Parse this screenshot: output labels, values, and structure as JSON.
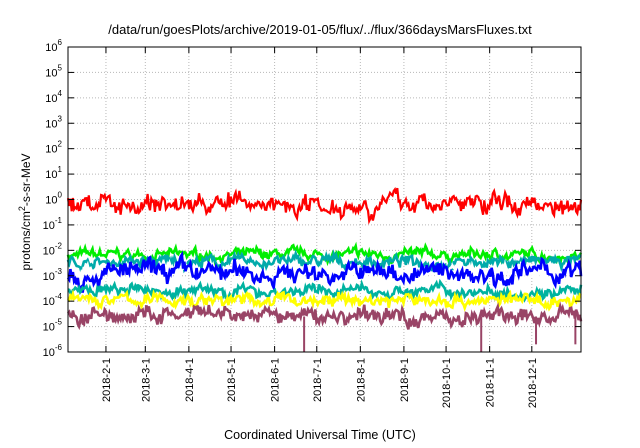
{
  "chart_data": {
    "type": "line",
    "title": "/data/run/goesPlots/archive/2019-01-05/flux/../flux/366daysMarsFluxes.txt",
    "xlabel": "Coordinated Universal Time (UTC)",
    "ylabel": "protons/cm²-s-sr-MeV",
    "ylabel_parts": {
      "pre": "protons/cm",
      "sup": "2",
      "post": "-s-sr-MeV"
    },
    "y_scale": "log",
    "ylim": [
      1e-06,
      1000000.0
    ],
    "y_ticks": [
      {
        "base": "10",
        "exp": "-6",
        "value": 1e-06
      },
      {
        "base": "10",
        "exp": "-5",
        "value": 1e-05
      },
      {
        "base": "10",
        "exp": "-4",
        "value": 0.0001
      },
      {
        "base": "10",
        "exp": "-3",
        "value": 0.001
      },
      {
        "base": "10",
        "exp": "-2",
        "value": 0.01
      },
      {
        "base": "10",
        "exp": "-1",
        "value": 0.1
      },
      {
        "base": "10",
        "exp": "0",
        "value": 1
      },
      {
        "base": "10",
        "exp": "1",
        "value": 10
      },
      {
        "base": "10",
        "exp": "2",
        "value": 100
      },
      {
        "base": "10",
        "exp": "3",
        "value": 1000
      },
      {
        "base": "10",
        "exp": "4",
        "value": 10000
      },
      {
        "base": "10",
        "exp": "5",
        "value": 100000
      },
      {
        "base": "10",
        "exp": "6",
        "value": 1000000
      }
    ],
    "xlim": [
      "2018-01-05",
      "2019-01-05"
    ],
    "x_ticks": [
      "2018-2-1",
      "2018-3-1",
      "2018-4-1",
      "2018-5-1",
      "2018-6-1",
      "2018-7-1",
      "2018-8-1",
      "2018-9-1",
      "2018-10-1",
      "2018-11-1",
      "2018-12-1"
    ],
    "x_tick_dates": [
      "2018-02-01",
      "2018-03-01",
      "2018-04-01",
      "2018-05-01",
      "2018-06-01",
      "2018-07-01",
      "2018-08-01",
      "2018-09-01",
      "2018-10-01",
      "2018-11-01",
      "2018-12-01"
    ],
    "grid": true,
    "series": [
      {
        "color": "#00ee00",
        "baseline": 0.0065,
        "amplitude": 0.18
      },
      {
        "color": "#00aaaa",
        "baseline": 0.0035,
        "amplitude": 0.2
      },
      {
        "color": "#ffffff",
        "baseline": 0.0012,
        "amplitude": 0.22
      },
      {
        "color": "#0000ff",
        "baseline": 0.0013,
        "amplitude": 0.35
      },
      {
        "color": "#00b3a0",
        "baseline": 0.00025,
        "amplitude": 0.2
      },
      {
        "color": "#ffff00",
        "baseline": 0.00011,
        "amplitude": 0.22
      },
      {
        "color": "#994466",
        "baseline": 2.5e-05,
        "amplitude": 0.3
      },
      {
        "color": "#ff0000",
        "baseline": 0.7,
        "amplitude": 0.35
      }
    ],
    "spikes": [
      {
        "date": "2018-06-22",
        "value": 1e-06,
        "color": "#994466"
      },
      {
        "date": "2018-10-26",
        "value": 1e-06,
        "color": "#994466"
      },
      {
        "date": "2018-12-04",
        "value": 2e-06,
        "color": "#994466"
      },
      {
        "date": "2019-01-01",
        "value": 2e-06,
        "color": "#994466"
      }
    ]
  }
}
